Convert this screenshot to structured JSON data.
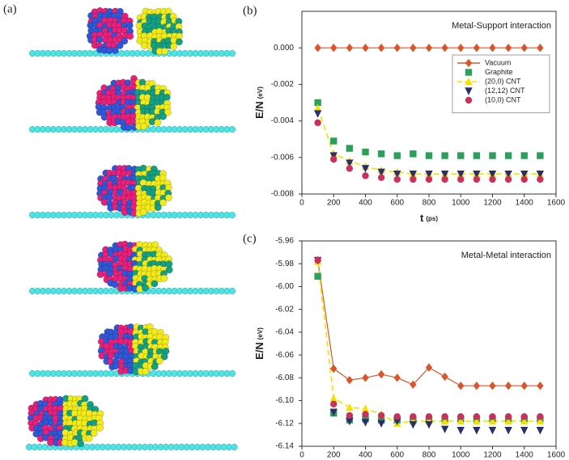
{
  "image_panel": {
    "label": "(a)"
  },
  "chart_data": [
    {
      "type": "line",
      "panel_label": "(b)",
      "annotation": "Metal-Support interaction",
      "y_label": "E/N",
      "y_unit": "(eV)",
      "x_label": "t",
      "x_unit": "(ps)",
      "x": [
        100,
        200,
        300,
        400,
        500,
        600,
        700,
        800,
        900,
        1000,
        1100,
        1200,
        1300,
        1400,
        1500
      ],
      "xlim": [
        0,
        1600
      ],
      "xticks": [
        0,
        200,
        400,
        600,
        800,
        1000,
        1200,
        1400,
        1600
      ],
      "ylim": [
        -0.008,
        0.002
      ],
      "yticks": [
        -0.008,
        -0.006,
        -0.004,
        -0.002,
        {
          "value": 0,
          "label": "0.000"
        }
      ],
      "legend": "upper right",
      "series": [
        {
          "name": "Vacuum",
          "color": "#d9552a",
          "marker": "diamond",
          "line": "solid",
          "values": [
            0,
            0,
            0,
            0,
            0,
            0,
            0,
            0,
            0,
            0,
            0,
            0,
            0,
            0,
            0
          ]
        },
        {
          "name": "Graphite",
          "color": "#2ca05a",
          "marker": "square",
          "line": "none",
          "values": [
            -0.003,
            -0.0051,
            -0.0055,
            -0.0057,
            -0.0058,
            -0.0059,
            -0.0058,
            -0.0059,
            -0.0059,
            -0.0059,
            -0.0059,
            -0.0059,
            -0.0059,
            -0.0059,
            -0.0059
          ]
        },
        {
          "name": "(20,0) CNT",
          "color": "#f2e200",
          "marker": "triangle-up",
          "line": "dashed",
          "values": [
            -0.0033,
            -0.0058,
            -0.0062,
            -0.0065,
            -0.0067,
            -0.0068,
            -0.0069,
            -0.0069,
            -0.0069,
            -0.0069,
            -0.0069,
            -0.0069,
            -0.0069,
            -0.0069,
            -0.0069
          ]
        },
        {
          "name": "(12,12) CNT",
          "color": "#2d2d6e",
          "marker": "triangle-down",
          "line": "none",
          "values": [
            -0.0036,
            -0.0059,
            -0.0063,
            -0.0066,
            -0.0068,
            -0.0069,
            -0.0069,
            -0.0069,
            -0.0069,
            -0.0069,
            -0.0069,
            -0.0069,
            -0.0069,
            -0.0069,
            -0.0069
          ]
        },
        {
          "name": "(10,0) CNT",
          "color": "#c8325a",
          "marker": "circle",
          "line": "none",
          "values": [
            -0.0041,
            -0.0061,
            -0.0066,
            -0.007,
            -0.0071,
            -0.0072,
            -0.0072,
            -0.0072,
            -0.0072,
            -0.0072,
            -0.0072,
            -0.0072,
            -0.0072,
            -0.0072,
            -0.0072
          ]
        }
      ]
    },
    {
      "type": "line",
      "panel_label": "(c)",
      "annotation": "Metal-Metal interaction",
      "y_label": "E/N",
      "y_unit": "(eV)",
      "x": [
        100,
        200,
        300,
        400,
        500,
        600,
        700,
        800,
        900,
        1000,
        1100,
        1200,
        1300,
        1400,
        1500
      ],
      "xlim": [
        0,
        1600
      ],
      "xticks": [
        0,
        200,
        400,
        600,
        800,
        1000,
        1200,
        1400,
        1600
      ],
      "ylim": [
        -6.14,
        -5.96
      ],
      "yticks": [
        -6.14,
        -6.12,
        {
          "value": -6.1,
          "label": "-6.10"
        },
        -6.08,
        -6.06,
        -6.04,
        -6.02,
        {
          "value": -6,
          "label": "-6.00"
        },
        -5.98,
        -5.96
      ],
      "series": [
        {
          "color": "#d9552a",
          "marker": "diamond",
          "line": "solid",
          "values": [
            -5.977,
            -6.072,
            -6.082,
            -6.08,
            -6.077,
            -6.08,
            -6.086,
            -6.071,
            -6.079,
            -6.087,
            -6.087,
            -6.087,
            -6.087,
            -6.087,
            -6.087
          ]
        },
        {
          "color": "#2ca05a",
          "marker": "square",
          "line": "none",
          "values": [
            -5.991,
            -6.111,
            -6.117,
            -6.116,
            -6.117,
            -6.117,
            -6.117,
            -6.117,
            -6.116,
            -6.116,
            -6.116,
            -6.116,
            -6.116,
            -6.116,
            -6.116
          ]
        },
        {
          "color": "#f2e200",
          "marker": "triangle-up",
          "line": "dashed",
          "values": [
            -5.978,
            -6.098,
            -6.106,
            -6.107,
            -6.112,
            -6.12,
            -6.118,
            -6.118,
            -6.118,
            -6.118,
            -6.118,
            -6.118,
            -6.118,
            -6.118,
            -6.118
          ]
        },
        {
          "color": "#2d2d6e",
          "marker": "triangle-down",
          "line": "none",
          "values": [
            -5.977,
            -6.11,
            -6.118,
            -6.119,
            -6.12,
            -6.118,
            -6.121,
            -6.121,
            -6.125,
            -6.126,
            -6.126,
            -6.126,
            -6.126,
            -6.126,
            -6.126
          ]
        },
        {
          "color": "#c8325a",
          "marker": "circle",
          "line": "none",
          "values": [
            -5.977,
            -6.103,
            -6.113,
            -6.112,
            -6.113,
            -6.114,
            -6.114,
            -6.114,
            -6.114,
            -6.114,
            -6.114,
            -6.114,
            -6.114,
            -6.114,
            -6.114
          ]
        }
      ]
    }
  ]
}
